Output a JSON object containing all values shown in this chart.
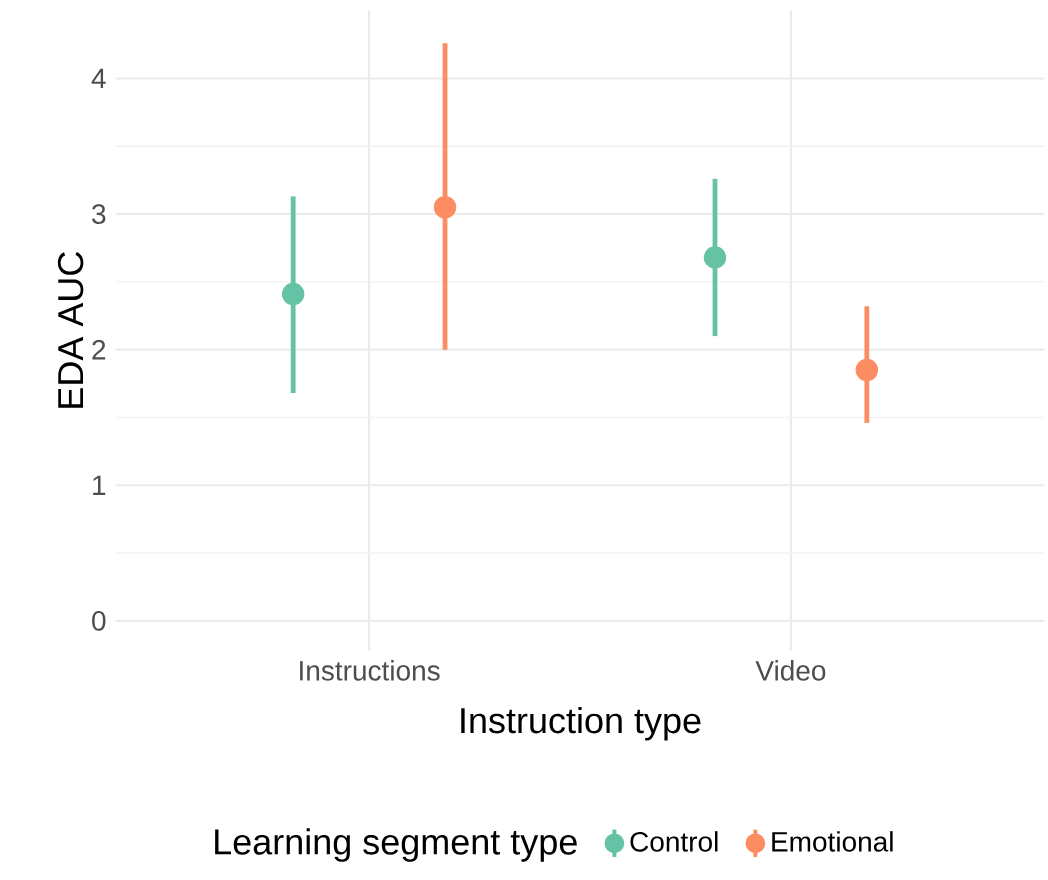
{
  "chart_data": {
    "type": "scatter",
    "xlabel": "Instruction type",
    "ylabel": "EDA AUC",
    "legend_title": "Learning segment type",
    "categories": [
      "Instructions",
      "Video"
    ],
    "series": [
      {
        "name": "Control",
        "color": "#66c2a5",
        "values": [
          2.41,
          2.68
        ],
        "errors": [
          [
            1.68,
            3.13
          ],
          [
            2.1,
            3.26
          ]
        ]
      },
      {
        "name": "Emotional",
        "color": "#fc8d62",
        "values": [
          3.05,
          1.85
        ],
        "errors": [
          [
            2.0,
            4.26
          ],
          [
            1.46,
            2.32
          ]
        ]
      }
    ],
    "ylim": [
      -0.22,
      4.5
    ],
    "yticks": [
      0,
      1,
      2,
      3,
      4
    ],
    "grid": true,
    "legend": "bottom",
    "marker": "circle"
  }
}
